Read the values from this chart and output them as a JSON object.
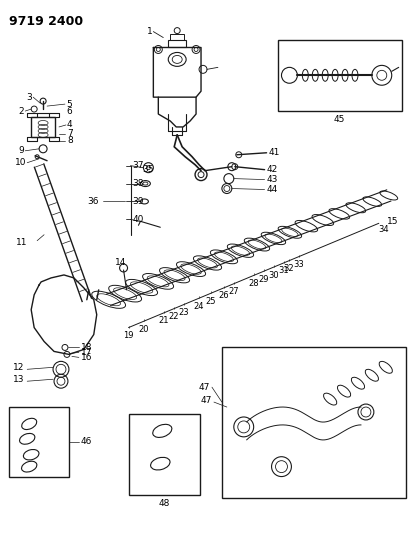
{
  "title": "9719 2400",
  "bg_color": "#ffffff",
  "line_color": "#1a1a1a",
  "title_fontsize": 9,
  "label_fontsize": 6.5,
  "fig_width": 4.11,
  "fig_height": 5.33,
  "dpi": 100
}
